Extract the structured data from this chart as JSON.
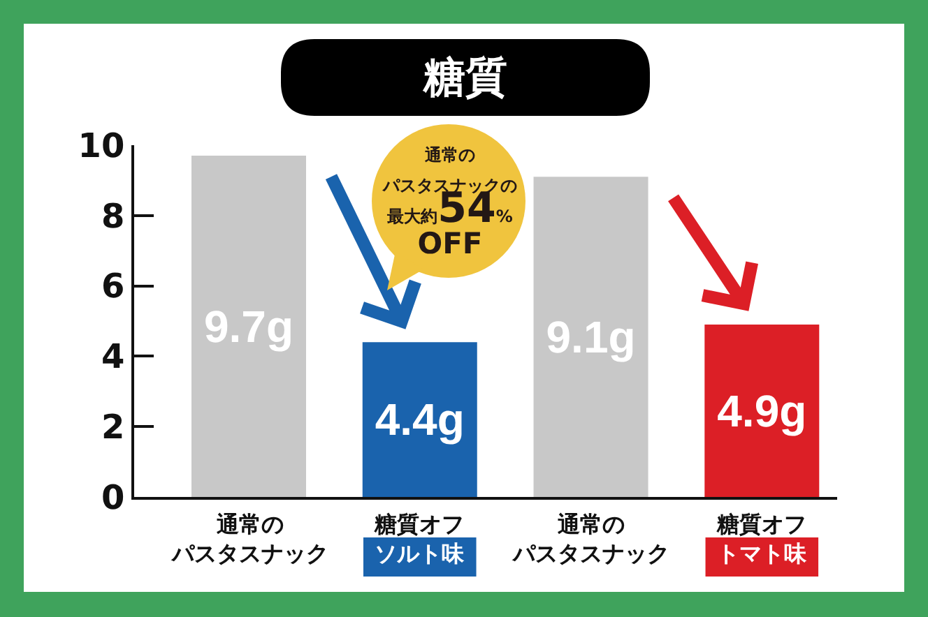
{
  "chart_data": {
    "type": "bar",
    "title": "糖質",
    "categories": [
      "通常のパスタスナック",
      "糖質オフソルト味",
      "通常のパスタスナック",
      "糖質オフトマト味"
    ],
    "values": [
      9.7,
      4.4,
      9.1,
      4.9
    ],
    "colors": [
      "#c8c8c8",
      "#1a63ad",
      "#c8c8c8",
      "#dc1f26"
    ],
    "value_labels": [
      "9.7g",
      "4.4g",
      "9.1g",
      "4.9g"
    ],
    "ylim": [
      0,
      10
    ],
    "yticks": [
      0,
      2,
      4,
      6,
      8,
      10
    ],
    "annotations": [
      "通常のパスタスナックの最大約54%OFF"
    ]
  }
}
